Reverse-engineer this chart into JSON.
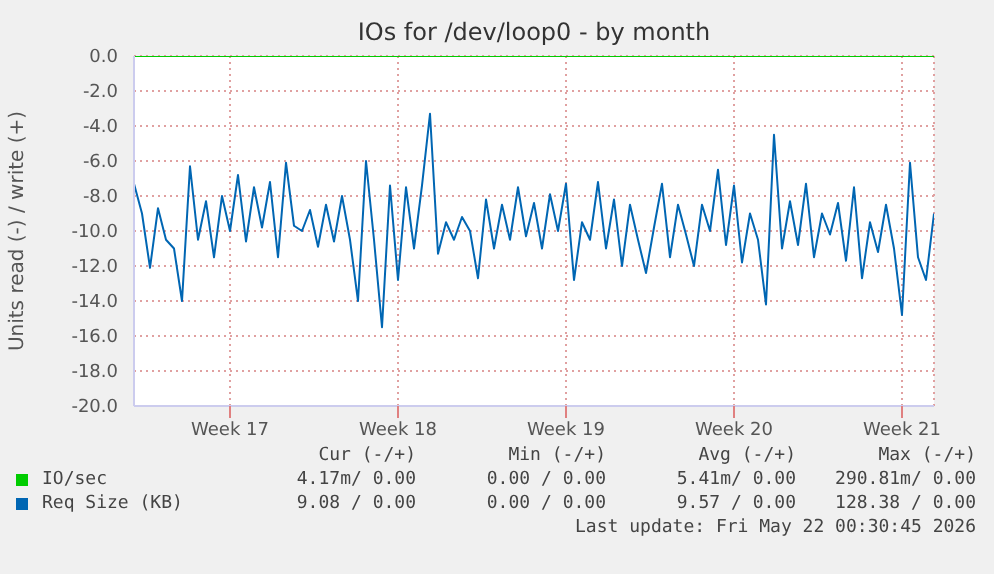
{
  "chart_data": {
    "type": "line",
    "title": "IOs for /dev/loop0 - by month",
    "ylabel": "Units read (-) / write (+)",
    "categories": [
      null,
      null,
      null,
      null,
      null,
      null,
      null,
      null,
      null,
      null,
      null,
      null,
      "Week 17",
      null,
      null,
      null,
      null,
      null,
      null,
      null,
      null,
      null,
      null,
      null,
      null,
      null,
      null,
      null,
      null,
      null,
      null,
      null,
      null,
      "Week 18",
      null,
      null,
      null,
      null,
      null,
      null,
      null,
      null,
      null,
      null,
      null,
      null,
      null,
      null,
      null,
      null,
      null,
      null,
      null,
      null,
      "Week 19",
      null,
      null,
      null,
      null,
      null,
      null,
      null,
      null,
      null,
      null,
      null,
      null,
      null,
      null,
      null,
      null,
      null,
      null,
      null,
      null,
      "Week 20",
      null,
      null,
      null,
      null,
      null,
      null,
      null,
      null,
      null,
      null,
      null,
      null,
      null,
      null,
      null,
      null,
      null,
      null,
      null,
      null,
      "Week 21",
      null,
      null,
      null,
      null
    ],
    "ylim": [
      -20,
      0
    ],
    "yticks": [
      {
        "value": -20,
        "label": "-20.0"
      },
      {
        "value": -18,
        "label": "-18.0"
      },
      {
        "value": -16,
        "label": "-16.0"
      },
      {
        "value": -14,
        "label": "-14.0"
      },
      {
        "value": -12,
        "label": "-12.0"
      },
      {
        "value": -10,
        "label": "-10.0"
      },
      {
        "value": -8,
        "label": "-8.0"
      },
      {
        "value": -6,
        "label": "-6.0"
      },
      {
        "value": -4,
        "label": "-4.0"
      },
      {
        "value": -2,
        "label": "-2.0"
      },
      {
        "value": 0,
        "label": "0.0"
      }
    ],
    "grid": true,
    "legend": "bottom",
    "marker": "none",
    "series": [
      {
        "name": "IO/sec",
        "color": "#00cc00",
        "values": [
          0,
          0,
          0,
          0,
          0,
          0,
          0,
          0,
          0,
          0,
          0,
          0,
          0,
          0,
          0,
          0,
          0,
          0,
          0,
          0,
          0,
          0,
          0,
          0,
          0,
          0,
          0,
          0,
          0,
          0,
          0,
          0,
          0,
          0,
          0,
          0,
          0,
          0,
          0,
          0,
          0,
          0,
          0,
          0,
          0,
          0,
          0,
          0,
          0,
          0,
          0,
          0,
          0,
          0,
          0,
          0,
          0,
          0,
          0,
          0,
          0,
          0,
          0,
          0,
          0,
          0,
          0,
          0,
          0,
          0,
          0,
          0,
          0,
          0,
          0,
          0,
          0,
          0,
          0,
          0,
          0,
          0,
          0,
          0,
          0,
          0,
          0,
          0,
          0,
          0,
          0,
          0,
          0,
          0,
          0,
          0,
          0,
          0,
          0,
          0,
          0
        ]
      },
      {
        "name": "Req Size (KB)",
        "color": "#0066b3",
        "values": [
          -7.3,
          -9,
          -12.1,
          -8.7,
          -10.5,
          -11,
          -14,
          -6.3,
          -10.5,
          -8.3,
          -11.5,
          -8,
          -10,
          -6.8,
          -10.6,
          -7.5,
          -9.8,
          -7.2,
          -11.5,
          -6.1,
          -9.7,
          -10,
          -8.8,
          -10.9,
          -8.5,
          -10.6,
          -8,
          -10.5,
          -14,
          -6,
          -10.5,
          -15.5,
          -7.4,
          -12.8,
          -7.5,
          -11,
          -7.4,
          -3.3,
          -11.3,
          -9.5,
          -10.5,
          -9.2,
          -10,
          -12.7,
          -8.2,
          -11,
          -8.5,
          -10.5,
          -7.5,
          -10.3,
          -8.4,
          -11,
          -7.9,
          -10,
          -7.3,
          -12.8,
          -9.5,
          -10.5,
          -7.2,
          -11,
          -8.2,
          -12,
          -8.5,
          -10.5,
          -12.4,
          -9.8,
          -7.3,
          -11.5,
          -8.5,
          -10.2,
          -12,
          -8.5,
          -10,
          -6.5,
          -10.8,
          -7.4,
          -11.8,
          -9,
          -10.5,
          -14.2,
          -4.5,
          -11,
          -8.3,
          -10.8,
          -7.3,
          -11.5,
          -9,
          -10.2,
          -8.4,
          -11.7,
          -7.5,
          -12.7,
          -9.5,
          -11.2,
          -8.5,
          -11,
          -14.8,
          -6.1,
          -11.5,
          -12.8,
          -9
        ]
      }
    ],
    "annotations": [
      "Cur (-/+)",
      "Min (-/+)",
      "Avg (-/+)",
      "Max (-/+)",
      "4.17m/ 0.00",
      "0.00 / 0.00",
      "5.41m/ 0.00",
      "290.81m/ 0.00",
      "9.08 / 0.00",
      "0.00 / 0.00",
      "9.57 / 0.00",
      "128.38 / 0.00",
      "Last update: Fri May 22 00:30:45 2026"
    ]
  }
}
